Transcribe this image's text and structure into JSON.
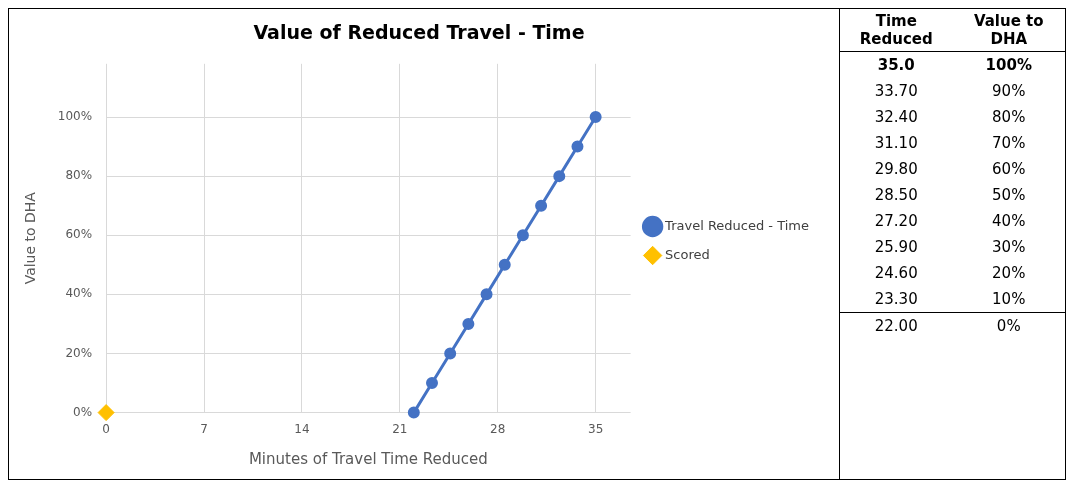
{
  "chart_data": {
    "type": "line",
    "title": "Value of Reduced Travel - Time",
    "xlabel": "Minutes of Travel Time Reduced",
    "ylabel": "Value to DHA",
    "xlim": [
      0,
      37.5
    ],
    "xticks": [
      0,
      7,
      14,
      21,
      28,
      35
    ],
    "ylim": [
      0,
      118
    ],
    "yticks": [
      {
        "value": 0,
        "label": "0%"
      },
      {
        "value": 20,
        "label": "20%"
      },
      {
        "value": 40,
        "label": "40%"
      },
      {
        "value": 60,
        "label": "60%"
      },
      {
        "value": 80,
        "label": "80%"
      },
      {
        "value": 100,
        "label": "100%"
      }
    ],
    "grid": true,
    "legend": "right",
    "marker": "circle",
    "line_style": "solid",
    "series": [
      {
        "name": "Travel Reduced - Time",
        "color": "#4472c4",
        "type": "line",
        "x": [
          22,
          23.3,
          24.6,
          25.9,
          27.2,
          28.5,
          29.8,
          31.1,
          32.4,
          33.7,
          35
        ],
        "values": [
          0,
          10,
          20,
          30,
          40,
          50,
          60,
          70,
          80,
          90,
          100
        ]
      },
      {
        "name": "Scored",
        "color": "#ffc000",
        "type": "scatter",
        "marker": "diamond",
        "x": [
          0
        ],
        "values": [
          0
        ]
      }
    ],
    "annotations": [
      "Time Reduced",
      "Value to DHA",
      "35.0",
      "100%",
      "33.70",
      "90%",
      "32.40",
      "80%",
      "31.10",
      "70%",
      "29.80",
      "60%",
      "28.50",
      "50%",
      "27.20",
      "40%",
      "25.90",
      "30%",
      "24.60",
      "20%",
      "23.30",
      "10%",
      "22.00",
      "0%"
    ]
  }
}
